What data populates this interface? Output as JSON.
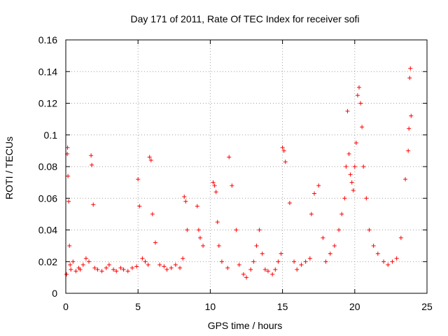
{
  "chart_data": {
    "type": "scatter",
    "title": "Day 171 of 2011, Rate Of TEC Index for receiver sofi",
    "xlabel": "GPS time / hours",
    "ylabel": "ROTI / TECUs",
    "xlim": [
      0,
      25
    ],
    "ylim": [
      0,
      0.16
    ],
    "xticks": [
      0,
      5,
      10,
      15,
      20,
      25
    ],
    "xtick_labels": [
      "0",
      "5",
      "10",
      "15",
      "20",
      "25"
    ],
    "yticks": [
      0,
      0.02,
      0.04,
      0.06,
      0.08,
      0.1,
      0.12,
      0.14,
      0.16
    ],
    "ytick_labels": [
      "0",
      "0.02",
      "0.04",
      "0.06",
      "0.08",
      "0.1",
      "0.12",
      "0.14",
      "0.16"
    ],
    "grid": true,
    "marker": "+",
    "marker_color": "#ff0000",
    "series": [
      {
        "name": "ROTI",
        "x": [
          0.05,
          0.1,
          0.12,
          0.15,
          0.2,
          0.25,
          0.3,
          0.35,
          0.5,
          0.7,
          0.9,
          1.0,
          1.2,
          1.4,
          1.6,
          1.75,
          1.8,
          1.9,
          2.0,
          2.2,
          2.5,
          2.8,
          3.0,
          3.3,
          3.5,
          3.8,
          4.0,
          4.3,
          4.6,
          4.9,
          5.0,
          5.1,
          5.3,
          5.5,
          5.7,
          5.8,
          5.9,
          6.0,
          6.2,
          6.5,
          6.8,
          7.0,
          7.3,
          7.6,
          7.9,
          8.1,
          8.2,
          8.3,
          8.4,
          9.1,
          9.2,
          9.3,
          9.5,
          10.2,
          10.3,
          10.4,
          10.5,
          10.6,
          10.8,
          11.2,
          11.3,
          11.5,
          11.8,
          12.0,
          12.3,
          12.5,
          12.8,
          13.0,
          13.2,
          13.4,
          13.6,
          13.8,
          14.0,
          14.3,
          14.5,
          14.7,
          14.9,
          15.0,
          15.1,
          15.2,
          15.5,
          15.8,
          16.0,
          16.3,
          16.6,
          16.9,
          17.0,
          17.2,
          17.5,
          17.8,
          18.0,
          18.3,
          18.6,
          18.9,
          19.1,
          19.3,
          19.4,
          19.5,
          19.6,
          19.7,
          19.8,
          19.9,
          20.0,
          20.1,
          20.2,
          20.3,
          20.4,
          20.5,
          20.6,
          20.8,
          21.0,
          21.3,
          21.6,
          22.0,
          22.3,
          22.6,
          22.9,
          23.2,
          23.5,
          23.7,
          23.75,
          23.8,
          23.85,
          23.9
        ],
        "y": [
          0.012,
          0.088,
          0.092,
          0.074,
          0.058,
          0.03,
          0.018,
          0.015,
          0.02,
          0.014,
          0.016,
          0.015,
          0.018,
          0.022,
          0.02,
          0.087,
          0.081,
          0.056,
          0.016,
          0.015,
          0.014,
          0.016,
          0.018,
          0.015,
          0.014,
          0.016,
          0.015,
          0.014,
          0.016,
          0.017,
          0.072,
          0.055,
          0.022,
          0.02,
          0.018,
          0.086,
          0.084,
          0.05,
          0.032,
          0.018,
          0.017,
          0.015,
          0.016,
          0.018,
          0.016,
          0.022,
          0.061,
          0.058,
          0.04,
          0.055,
          0.04,
          0.035,
          0.03,
          0.07,
          0.068,
          0.064,
          0.045,
          0.03,
          0.02,
          0.016,
          0.086,
          0.068,
          0.04,
          0.018,
          0.012,
          0.01,
          0.015,
          0.02,
          0.03,
          0.04,
          0.025,
          0.015,
          0.014,
          0.012,
          0.015,
          0.02,
          0.025,
          0.092,
          0.09,
          0.083,
          0.057,
          0.02,
          0.015,
          0.018,
          0.02,
          0.022,
          0.05,
          0.063,
          0.068,
          0.035,
          0.02,
          0.025,
          0.03,
          0.04,
          0.05,
          0.06,
          0.08,
          0.115,
          0.088,
          0.075,
          0.07,
          0.065,
          0.08,
          0.095,
          0.125,
          0.13,
          0.12,
          0.105,
          0.08,
          0.06,
          0.04,
          0.03,
          0.025,
          0.02,
          0.018,
          0.02,
          0.022,
          0.035,
          0.072,
          0.09,
          0.104,
          0.136,
          0.142,
          0.112
        ]
      }
    ]
  }
}
